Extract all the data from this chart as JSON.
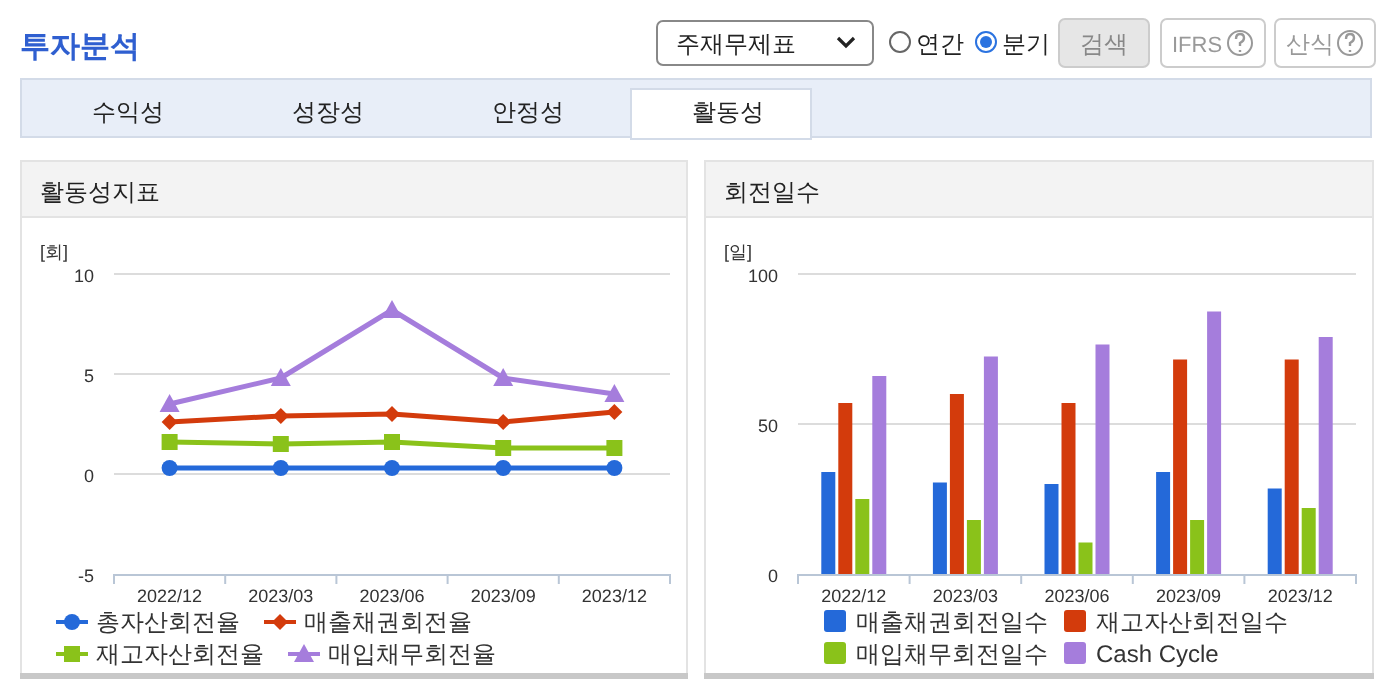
{
  "chart_data": [
    {
      "type": "other",
      "title": "투자분석",
      "annotations": [
        "주재무제표",
        "연간",
        "분기",
        "검색",
        "IFRS",
        "산식",
        "수익성",
        "성장성",
        "안정성",
        "활동성"
      ]
    },
    {
      "type": "line",
      "title": "활동성지표",
      "ylabel": "[회]",
      "categories": [
        "2022/12",
        "2023/03",
        "2023/06",
        "2023/09",
        "2023/12"
      ],
      "ylim": [
        -5,
        10
      ],
      "yticks": [
        -5,
        0,
        5,
        10
      ],
      "grid": "y",
      "legend": "bottom",
      "series": [
        {
          "name": "총자산회전율",
          "color": "#2469d9",
          "marker": "circle",
          "values": [
            0.3,
            0.3,
            0.3,
            0.3,
            0.3
          ]
        },
        {
          "name": "매출채권회전율",
          "color": "#d33b0c",
          "marker": "diamond",
          "values": [
            2.6,
            2.9,
            3.0,
            2.6,
            3.1
          ]
        },
        {
          "name": "재고자산회전율",
          "color": "#8ac21a",
          "marker": "square",
          "values": [
            1.6,
            1.5,
            1.6,
            1.3,
            1.3
          ]
        },
        {
          "name": "매입채무회전율",
          "color": "#a57ddc",
          "marker": "triangle",
          "values": [
            3.5,
            4.8,
            8.2,
            4.8,
            4.0
          ]
        }
      ]
    },
    {
      "type": "bar",
      "title": "회전일수",
      "ylabel": "[일]",
      "categories": [
        "2022/12",
        "2023/03",
        "2023/06",
        "2023/09",
        "2023/12"
      ],
      "ylim": [
        0,
        100
      ],
      "yticks": [
        0,
        50,
        100
      ],
      "grid": "y",
      "legend": "bottom",
      "series": [
        {
          "name": "매출채권회전일수",
          "color": "#2469d9",
          "values": [
            34,
            30.5,
            30,
            34,
            28.5
          ]
        },
        {
          "name": "재고자산회전일수",
          "color": "#d33b0c",
          "values": [
            57,
            60,
            57,
            71.5,
            71.5
          ]
        },
        {
          "name": "매입채무회전일수",
          "color": "#8ac21a",
          "values": [
            25,
            18,
            10.5,
            18,
            22
          ]
        },
        {
          "name": "Cash Cycle",
          "color": "#a57ddc",
          "values": [
            66,
            72.5,
            76.5,
            87.5,
            79
          ]
        }
      ]
    }
  ]
}
